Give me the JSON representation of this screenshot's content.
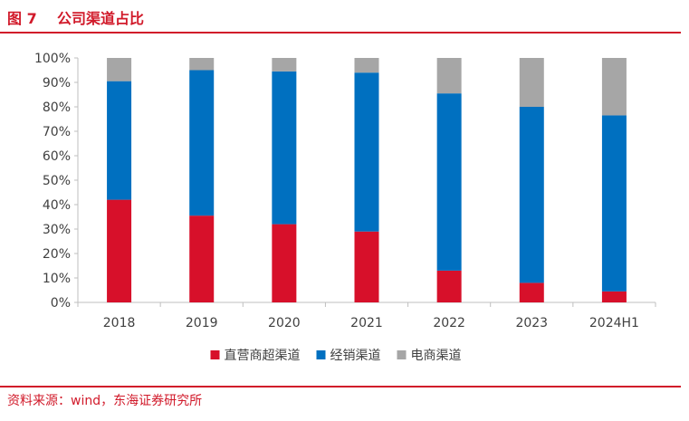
{
  "figure": {
    "title": "图 7    公司渠道占比",
    "source": "资料来源：wind，东海证券研究所"
  },
  "chart_data": {
    "type": "bar",
    "stacked": true,
    "categories": [
      "2018",
      "2019",
      "2020",
      "2021",
      "2022",
      "2023",
      "2024H1"
    ],
    "series": [
      {
        "name": "直营商超渠道",
        "color": "#d7102a",
        "values": [
          42,
          35.5,
          32,
          29,
          13,
          8,
          4.5
        ]
      },
      {
        "name": "经销渠道",
        "color": "#0070c0",
        "values": [
          48.5,
          59.5,
          62.5,
          65,
          72.5,
          72,
          72
        ]
      },
      {
        "name": "电商渠道",
        "color": "#a6a6a6",
        "values": [
          9.5,
          5,
          5.5,
          6,
          14.5,
          20,
          23.5
        ]
      }
    ],
    "ylim": [
      0,
      100
    ],
    "yticks": [
      "0%",
      "10%",
      "20%",
      "30%",
      "40%",
      "50%",
      "60%",
      "70%",
      "80%",
      "90%",
      "100%"
    ],
    "grid": false,
    "legend": "bottom"
  }
}
